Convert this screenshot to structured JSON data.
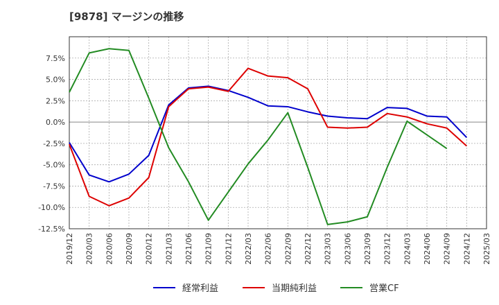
{
  "chart_data": {
    "type": "line",
    "title": "[9878]  マージンの推移",
    "x": [
      "2019/12",
      "2020/03",
      "2020/06",
      "2020/09",
      "2020/12",
      "2021/03",
      "2021/06",
      "2021/09",
      "2021/12",
      "2022/03",
      "2022/06",
      "2022/09",
      "2022/12",
      "2023/03",
      "2023/06",
      "2023/09",
      "2023/12",
      "2024/03",
      "2024/06",
      "2024/09",
      "2024/12",
      "2025/03"
    ],
    "ylim": [
      -12.5,
      10.0
    ],
    "yticks": [
      -12.5,
      -10.0,
      -7.5,
      -5.0,
      -2.5,
      0.0,
      2.5,
      5.0,
      7.5
    ],
    "ytick_labels": [
      "-12.5%",
      "-10.0%",
      "-7.5%",
      "-5.0%",
      "-2.5%",
      "0.0%",
      "2.5%",
      "5.0%",
      "7.5%"
    ],
    "grid": true,
    "legend_position": "bottom",
    "series": [
      {
        "name": "経常利益",
        "color": "#0000cc",
        "values": [
          -2.4,
          -6.2,
          -7.0,
          -6.1,
          -3.9,
          2.0,
          4.0,
          4.2,
          3.7,
          2.9,
          1.9,
          1.8,
          1.2,
          0.7,
          0.5,
          0.4,
          1.7,
          1.6,
          0.7,
          0.6,
          -1.8,
          null
        ]
      },
      {
        "name": "当期純利益",
        "color": "#dd0000",
        "values": [
          -2.6,
          -8.7,
          -9.8,
          -8.9,
          -6.5,
          1.8,
          3.9,
          4.1,
          3.6,
          6.3,
          5.4,
          5.2,
          3.9,
          -0.6,
          -0.7,
          -0.6,
          1.0,
          0.6,
          -0.2,
          -0.7,
          -2.8,
          null
        ]
      },
      {
        "name": "営業CF",
        "color": "#228b22",
        "values": [
          3.5,
          8.1,
          8.6,
          8.4,
          2.8,
          -3.0,
          -7.0,
          -11.5,
          -8.2,
          -4.9,
          -2.1,
          1.1,
          -5.3,
          -12.0,
          -11.7,
          -11.1,
          -5.3,
          0.1,
          -1.5,
          -3.1,
          null,
          null
        ]
      }
    ]
  }
}
